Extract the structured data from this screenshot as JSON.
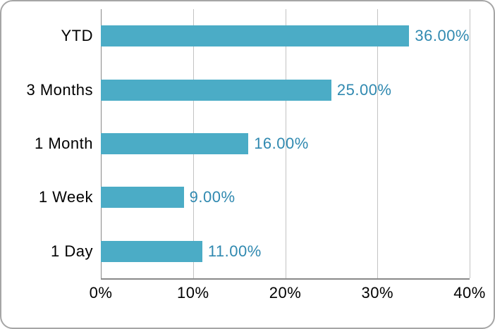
{
  "chart_data": {
    "type": "bar",
    "orientation": "horizontal",
    "title": "",
    "xlabel": "",
    "ylabel": "",
    "categories": [
      "YTD",
      "3 Months",
      "1 Month",
      "1 Week",
      "1 Day"
    ],
    "values": [
      36,
      25,
      16,
      9,
      11
    ],
    "data_labels": [
      "36.00%",
      "25.00%",
      "16.00%",
      "9.00%",
      "11.00%"
    ],
    "x_ticks": [
      "0%",
      "10%",
      "20%",
      "30%",
      "40%"
    ],
    "xlim": [
      0,
      40
    ],
    "grid": "vertical",
    "legend": "none"
  },
  "colors": {
    "bar": "#4BACC6",
    "data_label": "#3089B0",
    "gridline": "#C3C3C3",
    "axis_line": "#898989",
    "border": "#A6A6A6",
    "text": "#000000",
    "background": "#FFFFFF"
  }
}
